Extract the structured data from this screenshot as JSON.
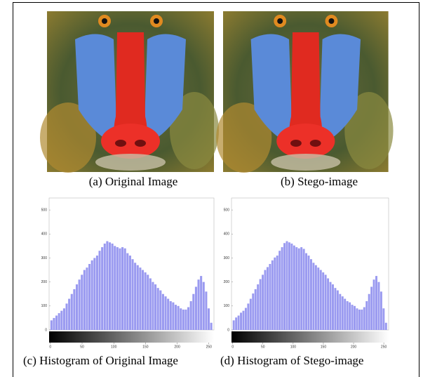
{
  "figures": [
    {
      "caption": "(a) Original Image"
    },
    {
      "caption": "(b) Stego-image"
    }
  ],
  "chart_data": [
    {
      "type": "bar",
      "caption": "(c) Histogram of Original Image",
      "color": "#9a9af0",
      "x": [
        0,
        4,
        8,
        12,
        16,
        20,
        24,
        28,
        32,
        36,
        40,
        44,
        48,
        52,
        56,
        60,
        64,
        68,
        72,
        76,
        80,
        84,
        88,
        92,
        96,
        100,
        104,
        108,
        112,
        116,
        120,
        124,
        128,
        132,
        136,
        140,
        144,
        148,
        152,
        156,
        160,
        164,
        168,
        172,
        176,
        180,
        184,
        188,
        192,
        196,
        200,
        204,
        208,
        212,
        216,
        220,
        224,
        228,
        232,
        236,
        240,
        244,
        248,
        252
      ],
      "values": [
        40,
        50,
        60,
        70,
        80,
        90,
        110,
        130,
        150,
        170,
        190,
        210,
        230,
        250,
        260,
        275,
        290,
        300,
        310,
        330,
        345,
        360,
        370,
        365,
        360,
        350,
        345,
        340,
        345,
        340,
        320,
        310,
        295,
        280,
        270,
        260,
        250,
        240,
        230,
        215,
        200,
        190,
        175,
        165,
        150,
        140,
        130,
        120,
        115,
        105,
        100,
        90,
        85,
        85,
        95,
        120,
        150,
        180,
        210,
        225,
        200,
        160,
        90,
        30
      ],
      "xlim": [
        -2,
        258
      ],
      "xticks": [
        0,
        50,
        100,
        150,
        200,
        250
      ],
      "ylim": [
        0,
        550
      ],
      "yticks": [
        0,
        100,
        200,
        300,
        400,
        500
      ]
    },
    {
      "type": "bar",
      "caption": "(d) Histogram of Stego-image",
      "color": "#9a9af0",
      "x": [
        0,
        4,
        8,
        12,
        16,
        20,
        24,
        28,
        32,
        36,
        40,
        44,
        48,
        52,
        56,
        60,
        64,
        68,
        72,
        76,
        80,
        84,
        88,
        92,
        96,
        100,
        104,
        108,
        112,
        116,
        120,
        124,
        128,
        132,
        136,
        140,
        144,
        148,
        152,
        156,
        160,
        164,
        168,
        172,
        176,
        180,
        184,
        188,
        192,
        196,
        200,
        204,
        208,
        212,
        216,
        220,
        224,
        228,
        232,
        236,
        240,
        244,
        248,
        252
      ],
      "values": [
        40,
        52,
        60,
        72,
        80,
        92,
        110,
        130,
        152,
        170,
        190,
        212,
        230,
        250,
        262,
        275,
        290,
        302,
        310,
        330,
        345,
        362,
        370,
        365,
        360,
        352,
        345,
        340,
        345,
        338,
        320,
        310,
        295,
        280,
        270,
        260,
        250,
        240,
        230,
        215,
        200,
        190,
        175,
        165,
        150,
        140,
        130,
        120,
        115,
        105,
        100,
        90,
        85,
        85,
        95,
        120,
        150,
        180,
        210,
        225,
        200,
        160,
        90,
        30
      ],
      "xlim": [
        -2,
        258
      ],
      "xticks": [
        0,
        50,
        100,
        150,
        200,
        250
      ],
      "ylim": [
        0,
        550
      ],
      "yticks": [
        0,
        100,
        200,
        300,
        400,
        500
      ]
    }
  ]
}
